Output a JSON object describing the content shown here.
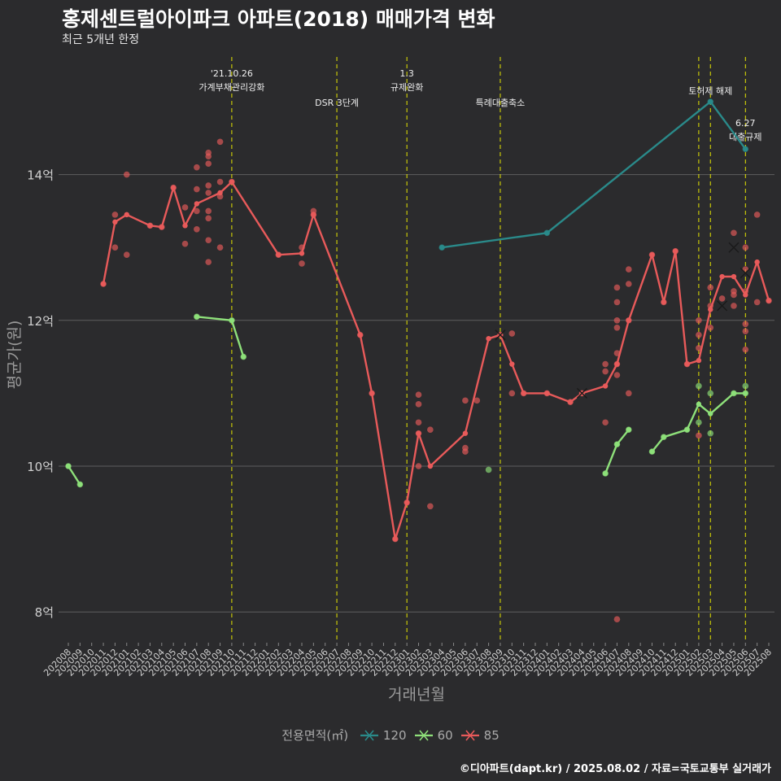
{
  "header": {
    "title": "홍제센트럴아이파크 아파트(2018) 매매가격 변화",
    "subtitle": "최근 5개년 한정"
  },
  "caption": "©디아파트(dapt.kr) / 2025.08.02 / 자료=국토교통부 실거래가",
  "colors": {
    "background": "#2b2b2d",
    "grid": "#5e5e5e",
    "vline": "#e6e600",
    "s120": "#2a8a8a",
    "s60": "#8ee07a",
    "s85": "#e85a5a"
  },
  "chart_data": {
    "type": "line",
    "xlabel": "거래년월",
    "ylabel": "평균가(원)",
    "ylim": [
      7.6,
      15.6
    ],
    "yticks": [
      {
        "value": 8,
        "label": "8억"
      },
      {
        "value": 10,
        "label": "10억"
      },
      {
        "value": 12,
        "label": "12억"
      },
      {
        "value": 14,
        "label": "14억"
      }
    ],
    "categories": [
      "202008",
      "202009",
      "202010",
      "202011",
      "202012",
      "202101",
      "202102",
      "202103",
      "202104",
      "202105",
      "202106",
      "202107",
      "202108",
      "202109",
      "202110",
      "202111",
      "202112",
      "202201",
      "202202",
      "202203",
      "202204",
      "202205",
      "202206",
      "202207",
      "202208",
      "202209",
      "202210",
      "202211",
      "202212",
      "202301",
      "202302",
      "202303",
      "202304",
      "202305",
      "202306",
      "202307",
      "202308",
      "202309",
      "202310",
      "202311",
      "202312",
      "202401",
      "202402",
      "202403",
      "202404",
      "202405",
      "202406",
      "202407",
      "202408",
      "202409",
      "202410",
      "202411",
      "202412",
      "202501",
      "202502",
      "202503",
      "202504",
      "202505",
      "202506",
      "202507",
      "202508"
    ],
    "legend_title": "전용면적(㎡)",
    "series": [
      {
        "name": "120",
        "color": "#2a8a8a",
        "points": [
          [
            "202304",
            13.0
          ],
          [
            "202401",
            13.2
          ],
          [
            "202503",
            15.0
          ],
          [
            "202506",
            14.35
          ]
        ],
        "deals": [
          [
            "202304",
            13.0
          ],
          [
            "202401",
            13.2
          ],
          [
            "202503",
            15.0
          ],
          [
            "202506",
            14.35
          ]
        ],
        "cancelled": []
      },
      {
        "name": "60",
        "color": "#8ee07a",
        "points": [
          [
            "202008",
            10.0
          ],
          [
            "202009",
            9.75
          ],
          [
            "202107",
            12.05
          ],
          [
            "202110",
            12.0
          ],
          [
            "202111",
            11.5
          ],
          [
            "202406",
            9.9
          ],
          [
            "202407",
            10.3
          ],
          [
            "202408",
            10.5
          ],
          [
            "202410",
            10.2
          ],
          [
            "202411",
            10.4
          ],
          [
            "202501",
            10.5
          ],
          [
            "202502",
            10.85
          ],
          [
            "202503",
            10.72
          ],
          [
            "202505",
            11.0
          ],
          [
            "202506",
            11.0
          ]
        ],
        "segments": [
          [
            0,
            1
          ],
          [
            2,
            4
          ],
          [
            5,
            7
          ],
          [
            8,
            14
          ]
        ],
        "deals": [
          [
            "202008",
            10.0
          ],
          [
            "202009",
            9.75
          ],
          [
            "202107",
            12.05
          ],
          [
            "202110",
            12.0
          ],
          [
            "202111",
            11.5
          ],
          [
            "202308",
            9.95
          ],
          [
            "202406",
            9.9
          ],
          [
            "202407",
            10.3
          ],
          [
            "202408",
            10.5
          ],
          [
            "202410",
            10.2
          ],
          [
            "202411",
            10.4
          ],
          [
            "202501",
            10.5
          ],
          [
            "202502",
            11.1
          ],
          [
            "202502",
            10.6
          ],
          [
            "202503",
            11.0
          ],
          [
            "202503",
            10.45
          ],
          [
            "202505",
            11.0
          ],
          [
            "202506",
            11.1
          ],
          [
            "202506",
            11.0
          ]
        ],
        "cancelled": []
      },
      {
        "name": "85",
        "color": "#e85a5a",
        "points": [
          [
            "202011",
            12.5
          ],
          [
            "202012",
            13.35
          ],
          [
            "202101",
            13.45
          ],
          [
            "202103",
            13.3
          ],
          [
            "202104",
            13.28
          ],
          [
            "202105",
            13.82
          ],
          [
            "202106",
            13.3
          ],
          [
            "202107",
            13.6
          ],
          [
            "202109",
            13.75
          ],
          [
            "202110",
            13.9
          ],
          [
            "202202",
            12.9
          ],
          [
            "202204",
            12.92
          ],
          [
            "202205",
            13.45
          ],
          [
            "202209",
            11.8
          ],
          [
            "202210",
            11.0
          ],
          [
            "202212",
            9.0
          ],
          [
            "202301",
            9.5
          ],
          [
            "202302",
            10.45
          ],
          [
            "202303",
            10.0
          ],
          [
            "202306",
            10.45
          ],
          [
            "202308",
            11.75
          ],
          [
            "202309",
            11.8
          ],
          [
            "202310",
            11.4
          ],
          [
            "202311",
            11.0
          ],
          [
            "202401",
            11.0
          ],
          [
            "202403",
            10.88
          ],
          [
            "202404",
            11.0
          ],
          [
            "202406",
            11.1
          ],
          [
            "202407",
            11.4
          ],
          [
            "202408",
            12.0
          ],
          [
            "202410",
            12.9
          ],
          [
            "202411",
            12.25
          ],
          [
            "202412",
            12.95
          ],
          [
            "202501",
            11.4
          ],
          [
            "202502",
            11.45
          ],
          [
            "202503",
            12.15
          ],
          [
            "202504",
            12.6
          ],
          [
            "202505",
            12.6
          ],
          [
            "202506",
            12.35
          ],
          [
            "202507",
            12.8
          ],
          [
            "202508",
            12.27
          ]
        ],
        "deals": [
          [
            "202011",
            12.5
          ],
          [
            "202012",
            13.45
          ],
          [
            "202012",
            13.0
          ],
          [
            "202101",
            14.0
          ],
          [
            "202101",
            12.9
          ],
          [
            "202103",
            13.3
          ],
          [
            "202104",
            13.28
          ],
          [
            "202105",
            13.82
          ],
          [
            "202106",
            13.55
          ],
          [
            "202106",
            13.05
          ],
          [
            "202107",
            14.1
          ],
          [
            "202107",
            13.8
          ],
          [
            "202107",
            13.5
          ],
          [
            "202107",
            13.25
          ],
          [
            "202108",
            14.3
          ],
          [
            "202108",
            14.25
          ],
          [
            "202108",
            14.15
          ],
          [
            "202108",
            13.85
          ],
          [
            "202108",
            13.75
          ],
          [
            "202108",
            13.5
          ],
          [
            "202108",
            13.4
          ],
          [
            "202108",
            13.1
          ],
          [
            "202108",
            12.8
          ],
          [
            "202109",
            14.45
          ],
          [
            "202109",
            13.9
          ],
          [
            "202109",
            13.7
          ],
          [
            "202109",
            13.0
          ],
          [
            "202110",
            13.9
          ],
          [
            "202202",
            12.9
          ],
          [
            "202204",
            12.78
          ],
          [
            "202204",
            13.0
          ],
          [
            "202205",
            13.5
          ],
          [
            "202205",
            13.45
          ],
          [
            "202209",
            11.8
          ],
          [
            "202210",
            11.0
          ],
          [
            "202212",
            9.0
          ],
          [
            "202301",
            9.5
          ],
          [
            "202302",
            10.98
          ],
          [
            "202302",
            10.85
          ],
          [
            "202302",
            10.6
          ],
          [
            "202302",
            10.45
          ],
          [
            "202302",
            10.0
          ],
          [
            "202303",
            10.5
          ],
          [
            "202303",
            9.45
          ],
          [
            "202306",
            10.9
          ],
          [
            "202306",
            10.25
          ],
          [
            "202306",
            10.2
          ],
          [
            "202307",
            10.9
          ],
          [
            "202309",
            11.8
          ],
          [
            "202310",
            11.82
          ],
          [
            "202310",
            11.0
          ],
          [
            "202311",
            11.0
          ],
          [
            "202401",
            11.0
          ],
          [
            "202403",
            10.88
          ],
          [
            "202404",
            11.0
          ],
          [
            "202406",
            11.4
          ],
          [
            "202406",
            11.3
          ],
          [
            "202406",
            10.6
          ],
          [
            "202407",
            12.45
          ],
          [
            "202407",
            12.25
          ],
          [
            "202407",
            12.0
          ],
          [
            "202407",
            11.9
          ],
          [
            "202407",
            11.55
          ],
          [
            "202407",
            11.4
          ],
          [
            "202407",
            11.25
          ],
          [
            "202407",
            7.9
          ],
          [
            "202408",
            12.7
          ],
          [
            "202408",
            12.5
          ],
          [
            "202408",
            12.0
          ],
          [
            "202408",
            11.0
          ],
          [
            "202410",
            12.9
          ],
          [
            "202411",
            12.25
          ],
          [
            "202412",
            12.95
          ],
          [
            "202501",
            11.4
          ],
          [
            "202502",
            12.0
          ],
          [
            "202502",
            11.8
          ],
          [
            "202502",
            11.62
          ],
          [
            "202502",
            10.42
          ],
          [
            "202503",
            12.45
          ],
          [
            "202503",
            12.2
          ],
          [
            "202503",
            11.9
          ],
          [
            "202504",
            12.3
          ],
          [
            "202505",
            13.2
          ],
          [
            "202505",
            12.4
          ],
          [
            "202505",
            12.35
          ],
          [
            "202505",
            12.2
          ],
          [
            "202506",
            13.0
          ],
          [
            "202506",
            12.7
          ],
          [
            "202506",
            12.4
          ],
          [
            "202506",
            11.95
          ],
          [
            "202506",
            11.85
          ],
          [
            "202506",
            11.6
          ],
          [
            "202507",
            13.45
          ],
          [
            "202507",
            12.25
          ],
          [
            "202508",
            12.27
          ]
        ],
        "cancelled": [
          [
            "202309",
            11.8
          ],
          [
            "202404",
            11.0
          ],
          [
            "202504",
            12.2
          ],
          [
            "202505",
            13.0
          ],
          [
            "202506",
            12.65
          ]
        ]
      }
    ],
    "events": [
      {
        "x": "202110",
        "lines": [
          "'21.10.26",
          "가계부채관리강화"
        ],
        "row": 0
      },
      {
        "x": "202207",
        "lines": [
          "DSR 3단계"
        ],
        "row": 1
      },
      {
        "x": "202301",
        "lines": [
          "1.3",
          "규제완화"
        ],
        "row": 0
      },
      {
        "x": "202309",
        "lines": [
          "특례대출축소"
        ],
        "row": 1
      },
      {
        "x": "202502",
        "lines": [],
        "row": 0
      },
      {
        "x": "202503",
        "lines": [
          "토허제 해제"
        ],
        "row": 0.6
      },
      {
        "x": "202506",
        "lines": [
          "6.27",
          "대출규제"
        ],
        "row": 1.7
      }
    ]
  }
}
